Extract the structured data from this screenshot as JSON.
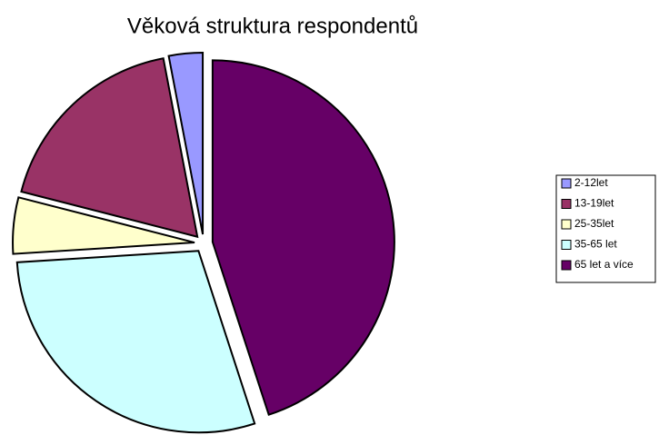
{
  "chart_data": {
    "type": "pie",
    "title": "Věková struktura respondentů",
    "categories": [
      "2-12let",
      "13-19let",
      "25-35let",
      "35-65 let",
      "65 let a více"
    ],
    "values": [
      3,
      18,
      5,
      29,
      45
    ],
    "colors": [
      "#9999ff",
      "#993366",
      "#ffffcc",
      "#ccffff",
      "#660066"
    ],
    "legend": "right"
  }
}
